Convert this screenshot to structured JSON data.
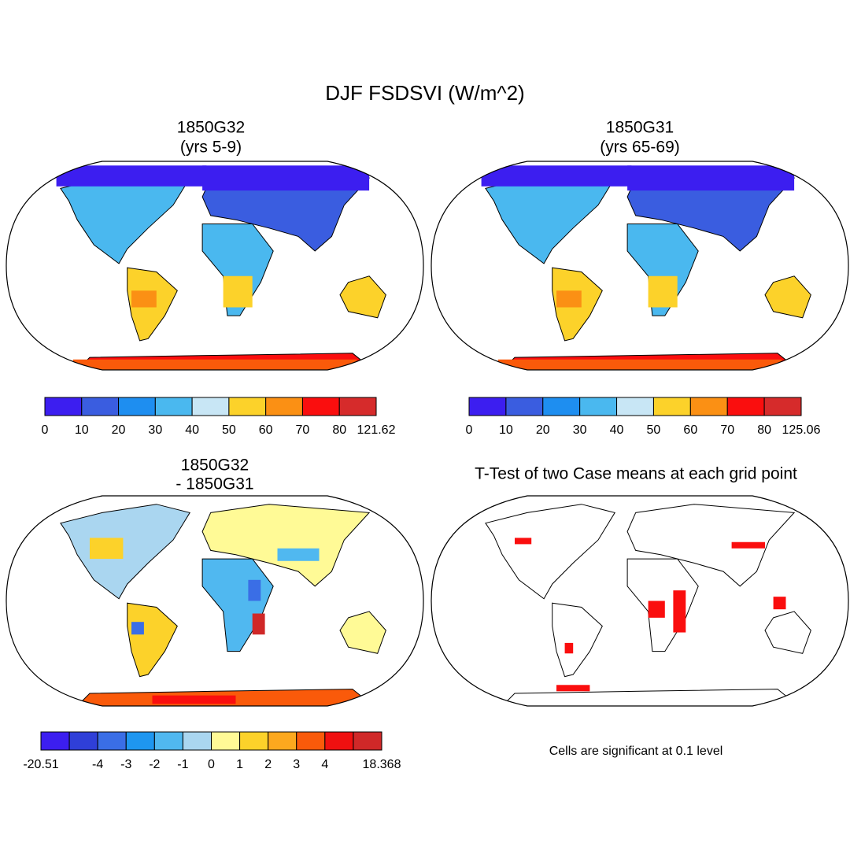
{
  "title": "DJF FSDSVI (W/m^2)",
  "panels": [
    {
      "title": [
        "1850G32",
        "(yrs 5-9)"
      ],
      "colorbar": {
        "colors": [
          "#3c1ef0",
          "#3a5de0",
          "#1e8ef0",
          "#4ab8ef",
          "#c8e6f5",
          "#fcd22a",
          "#fb9014",
          "#fa0e0e",
          "#d62b2b"
        ],
        "labels": [
          0,
          10,
          20,
          30,
          40,
          50,
          60,
          70,
          80,
          121.62
        ]
      }
    },
    {
      "title": [
        "1850G31",
        "(yrs 65-69)"
      ],
      "colorbar": {
        "colors": [
          "#3c1ef0",
          "#3a5de0",
          "#1e8ef0",
          "#4ab8ef",
          "#c8e6f5",
          "#fcd22a",
          "#fb9014",
          "#fa0e0e",
          "#d62b2b"
        ],
        "labels": [
          0,
          10,
          20,
          30,
          40,
          50,
          60,
          70,
          80,
          125.06
        ]
      }
    },
    {
      "title": [
        "1850G32",
        "- 1850G31"
      ],
      "colorbar": {
        "colors": [
          "#3c1ef0",
          "#2f3fd8",
          "#3a6ee6",
          "#1e96f0",
          "#50b8f0",
          "#aad6f0",
          "#fffa96",
          "#fcd22a",
          "#fca81e",
          "#fa5a0a",
          "#f01010",
          "#d02828"
        ],
        "labels": [
          -20.51,
          null,
          -4,
          -3,
          -2,
          -1,
          0,
          1,
          2,
          3,
          4,
          null,
          18.368
        ]
      }
    },
    {
      "title": [
        "T-Test of two Case means at each grid point"
      ],
      "note": "Cells are significant at 0.1 level"
    }
  ]
}
